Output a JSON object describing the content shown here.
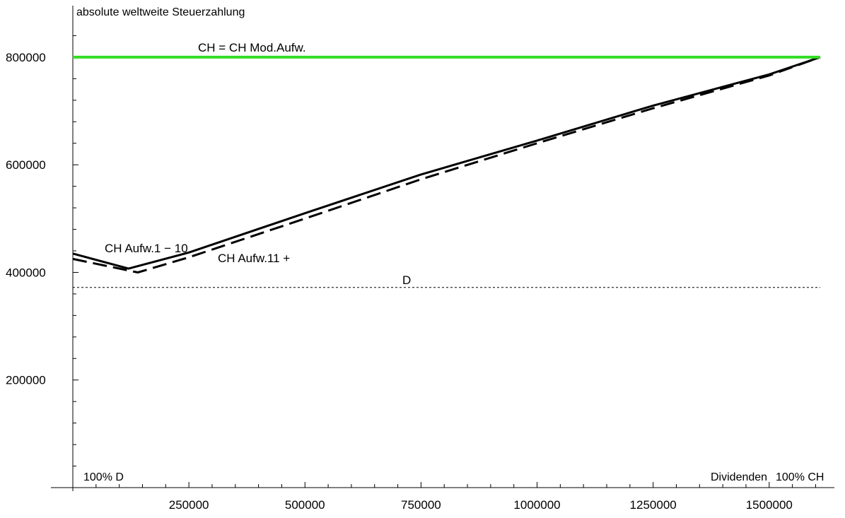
{
  "chart_data": {
    "type": "line",
    "ylabel": "absolute weltweite Steuerzahlung",
    "xlabel": "Dividenden",
    "xlim": [
      0,
      1610000
    ],
    "ylim": [
      0,
      880000
    ],
    "x_ticks": [
      250000,
      500000,
      750000,
      1000000,
      1250000,
      1500000
    ],
    "x_tick_labels": [
      "250000",
      "500000",
      "750000",
      "1000000",
      "1250000",
      "1500000"
    ],
    "y_ticks": [
      200000,
      400000,
      600000,
      800000
    ],
    "y_tick_labels": [
      "200000",
      "400000",
      "600000",
      "800000"
    ],
    "corner_left_label": "100% D",
    "corner_right_label": "100% CH",
    "colors": {
      "green": "#33dd22",
      "black": "#000000"
    },
    "series": [
      {
        "name": "CH = CH Mod.Aufw.",
        "style": "solid-green",
        "x": [
          0,
          1610000
        ],
        "y": [
          800000,
          800000
        ]
      },
      {
        "name": "CH Aufw.1 − 10",
        "style": "solid-black",
        "x": [
          0,
          120000,
          250000,
          500000,
          750000,
          1000000,
          1250000,
          1500000,
          1610000
        ],
        "y": [
          435000,
          407000,
          437000,
          510000,
          582000,
          645000,
          710000,
          768000,
          800000
        ]
      },
      {
        "name": "CH Aufw.11 +",
        "style": "dashed-black",
        "x": [
          0,
          140000,
          250000,
          500000,
          750000,
          1000000,
          1250000,
          1500000,
          1610000
        ],
        "y": [
          425000,
          400000,
          428000,
          500000,
          573000,
          640000,
          705000,
          766000,
          800000
        ]
      },
      {
        "name": "D",
        "style": "dotted-black",
        "x": [
          0,
          1610000
        ],
        "y": [
          372000,
          372000
        ]
      }
    ]
  }
}
